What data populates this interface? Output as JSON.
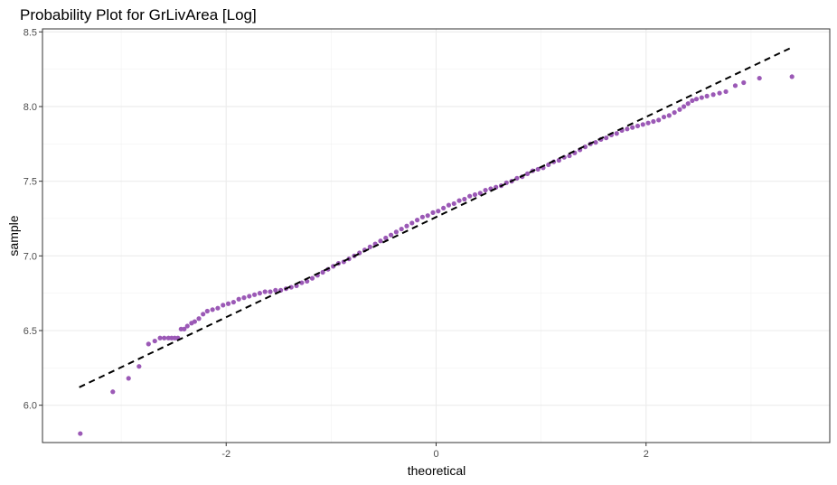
{
  "chart_data": {
    "type": "scatter",
    "title": "Probability Plot for GrLivArea [Log]",
    "xlabel": "theoretical",
    "ylabel": "sample",
    "xlim": [
      -3.75,
      3.75
    ],
    "ylim": [
      5.75,
      8.52
    ],
    "x_ticks": [
      -2,
      0,
      2
    ],
    "x_tick_labels": [
      "-2",
      "0",
      "2"
    ],
    "y_ticks": [
      6.0,
      6.5,
      7.0,
      7.5,
      8.0,
      8.5
    ],
    "y_tick_labels": [
      "6.0",
      "6.5",
      "7.0",
      "7.5",
      "8.0",
      "8.5"
    ],
    "grid": true,
    "colors": {
      "points": "#9b59b6",
      "reference_line": "#000000"
    },
    "reference_line": {
      "style": "dashed",
      "x": [
        -3.4,
        3.4
      ],
      "y": [
        6.12,
        8.4
      ]
    },
    "series": [
      {
        "points": [
          [
            -3.39,
            5.81
          ],
          [
            -3.08,
            6.09
          ],
          [
            -2.93,
            6.18
          ],
          [
            -2.83,
            6.26
          ],
          [
            -2.74,
            6.41
          ],
          [
            -2.68,
            6.43
          ],
          [
            -2.63,
            6.45
          ],
          [
            -2.59,
            6.45
          ],
          [
            -2.55,
            6.45
          ],
          [
            -2.52,
            6.45
          ],
          [
            -2.49,
            6.45
          ],
          [
            -2.46,
            6.45
          ],
          [
            -2.43,
            6.51
          ],
          [
            -2.4,
            6.51
          ],
          [
            -2.37,
            6.53
          ],
          [
            -2.33,
            6.55
          ],
          [
            -2.3,
            6.56
          ],
          [
            -2.26,
            6.58
          ],
          [
            -2.22,
            6.61
          ],
          [
            -2.18,
            6.63
          ],
          [
            -2.13,
            6.64
          ],
          [
            -2.08,
            6.65
          ],
          [
            -2.03,
            6.67
          ],
          [
            -1.98,
            6.68
          ],
          [
            -1.93,
            6.69
          ],
          [
            -1.88,
            6.71
          ],
          [
            -1.83,
            6.72
          ],
          [
            -1.78,
            6.73
          ],
          [
            -1.73,
            6.74
          ],
          [
            -1.68,
            6.75
          ],
          [
            -1.63,
            6.76
          ],
          [
            -1.58,
            6.76
          ],
          [
            -1.53,
            6.77
          ],
          [
            -1.48,
            6.77
          ],
          [
            -1.43,
            6.78
          ],
          [
            -1.38,
            6.79
          ],
          [
            -1.33,
            6.8
          ],
          [
            -1.28,
            6.82
          ],
          [
            -1.23,
            6.83
          ],
          [
            -1.18,
            6.85
          ],
          [
            -1.13,
            6.87
          ],
          [
            -1.08,
            6.89
          ],
          [
            -1.03,
            6.91
          ],
          [
            -0.98,
            6.93
          ],
          [
            -0.93,
            6.95
          ],
          [
            -0.88,
            6.96
          ],
          [
            -0.83,
            6.98
          ],
          [
            -0.78,
            7.0
          ],
          [
            -0.73,
            7.02
          ],
          [
            -0.68,
            7.04
          ],
          [
            -0.63,
            7.06
          ],
          [
            -0.58,
            7.08
          ],
          [
            -0.53,
            7.1
          ],
          [
            -0.48,
            7.12
          ],
          [
            -0.43,
            7.14
          ],
          [
            -0.38,
            7.16
          ],
          [
            -0.33,
            7.18
          ],
          [
            -0.28,
            7.2
          ],
          [
            -0.23,
            7.22
          ],
          [
            -0.18,
            7.24
          ],
          [
            -0.13,
            7.26
          ],
          [
            -0.08,
            7.27
          ],
          [
            -0.03,
            7.29
          ],
          [
            0.02,
            7.3
          ],
          [
            0.07,
            7.32
          ],
          [
            0.12,
            7.34
          ],
          [
            0.17,
            7.35
          ],
          [
            0.22,
            7.37
          ],
          [
            0.27,
            7.38
          ],
          [
            0.32,
            7.4
          ],
          [
            0.37,
            7.41
          ],
          [
            0.42,
            7.42
          ],
          [
            0.47,
            7.44
          ],
          [
            0.52,
            7.45
          ],
          [
            0.57,
            7.46
          ],
          [
            0.62,
            7.47
          ],
          [
            0.67,
            7.49
          ],
          [
            0.72,
            7.5
          ],
          [
            0.77,
            7.52
          ],
          [
            0.82,
            7.53
          ],
          [
            0.87,
            7.55
          ],
          [
            0.92,
            7.57
          ],
          [
            0.97,
            7.58
          ],
          [
            1.02,
            7.59
          ],
          [
            1.07,
            7.61
          ],
          [
            1.12,
            7.63
          ],
          [
            1.17,
            7.64
          ],
          [
            1.22,
            7.66
          ],
          [
            1.27,
            7.67
          ],
          [
            1.32,
            7.69
          ],
          [
            1.37,
            7.71
          ],
          [
            1.42,
            7.73
          ],
          [
            1.47,
            7.75
          ],
          [
            1.52,
            7.76
          ],
          [
            1.57,
            7.78
          ],
          [
            1.62,
            7.79
          ],
          [
            1.67,
            7.81
          ],
          [
            1.72,
            7.82
          ],
          [
            1.77,
            7.84
          ],
          [
            1.82,
            7.85
          ],
          [
            1.87,
            7.86
          ],
          [
            1.92,
            7.87
          ],
          [
            1.97,
            7.88
          ],
          [
            2.02,
            7.89
          ],
          [
            2.07,
            7.9
          ],
          [
            2.12,
            7.91
          ],
          [
            2.17,
            7.93
          ],
          [
            2.22,
            7.94
          ],
          [
            2.27,
            7.96
          ],
          [
            2.32,
            7.98
          ],
          [
            2.36,
            8.0
          ],
          [
            2.4,
            8.02
          ],
          [
            2.44,
            8.04
          ],
          [
            2.48,
            8.05
          ],
          [
            2.53,
            8.06
          ],
          [
            2.58,
            8.07
          ],
          [
            2.64,
            8.08
          ],
          [
            2.7,
            8.09
          ],
          [
            2.76,
            8.1
          ],
          [
            2.85,
            8.14
          ],
          [
            2.93,
            8.16
          ],
          [
            3.08,
            8.19
          ],
          [
            3.39,
            8.2
          ]
        ]
      }
    ]
  }
}
